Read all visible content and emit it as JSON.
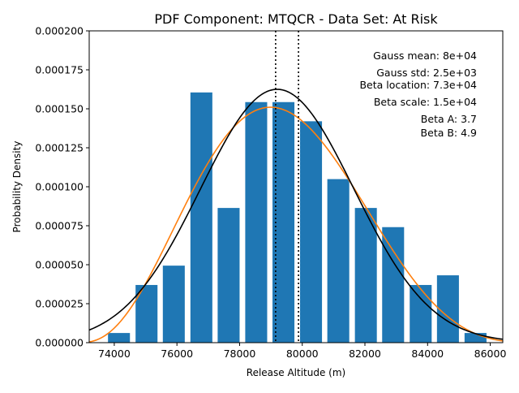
{
  "chart_data": {
    "type": "bar",
    "title": "PDF Component: MTQCR - Data Set: At Risk",
    "xlabel": "Release Altitude (m)",
    "ylabel": "Probability Density",
    "xlim": [
      73200,
      86400
    ],
    "ylim": [
      0,
      0.0002
    ],
    "x_ticks": [
      74000,
      76000,
      78000,
      80000,
      82000,
      84000,
      86000
    ],
    "x_tick_labels": [
      "74000",
      "76000",
      "78000",
      "80000",
      "82000",
      "84000",
      "86000"
    ],
    "y_ticks": [
      0,
      2.5e-05,
      5e-05,
      7.5e-05,
      0.0001,
      0.000125,
      0.00015,
      0.000175,
      0.0002
    ],
    "y_tick_labels": [
      "0.000000",
      "0.000025",
      "0.000050",
      "0.000075",
      "0.000100",
      "0.000125",
      "0.000150",
      "0.000175",
      "0.000200"
    ],
    "grid": false,
    "bar_width": 700,
    "bar_color": "#1f77b4",
    "histogram": {
      "centers": [
        74150,
        75030,
        75900,
        76780,
        77650,
        78530,
        79400,
        80280,
        81150,
        82030,
        82900,
        83780,
        84650,
        85530
      ],
      "values": [
        6.2e-06,
        3.7e-05,
        4.94e-05,
        0.0001605,
        8.64e-05,
        0.0001543,
        0.0001543,
        0.000142,
        0.0001049,
        8.64e-05,
        7.41e-05,
        3.7e-05,
        4.32e-05,
        6.2e-06
      ]
    },
    "series": [
      {
        "type": "line",
        "color": "#000000",
        "gauss_mean": 79200,
        "gauss_std": 2450,
        "peak": 0.0001625
      },
      {
        "type": "line",
        "color": "#ff7f0e",
        "beta_location": 72850,
        "beta_scale": 15000,
        "beta_a": 3.7,
        "beta_b": 4.9,
        "peak": 0.000151
      }
    ],
    "vlines": {
      "x": [
        79150,
        79880
      ],
      "color": "#000000",
      "style": "dotted"
    },
    "annotations": [
      "Gauss mean: 8e+04",
      "Gauss std: 2.5e+03",
      "Beta location: 7.3e+04",
      "Beta scale: 1.5e+04",
      "Beta A: 3.7",
      "Beta B: 4.9"
    ]
  }
}
